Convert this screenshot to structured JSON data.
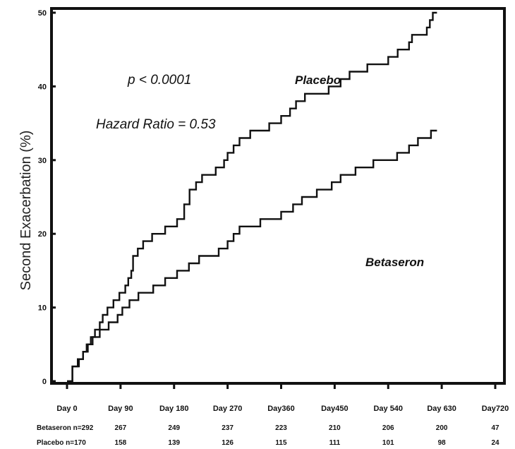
{
  "chart_data": {
    "type": "line",
    "title": "",
    "xlabel": "",
    "ylabel": "Second Exacerbation (%)",
    "xlim": [
      0,
      720
    ],
    "ylim": [
      0,
      50
    ],
    "x_ticks": [
      {
        "value": 0,
        "label": "Day 0"
      },
      {
        "value": 90,
        "label": "Day 90"
      },
      {
        "value": 180,
        "label": "Day 180"
      },
      {
        "value": 270,
        "label": "Day 270"
      },
      {
        "value": 360,
        "label": "Day360"
      },
      {
        "value": 450,
        "label": "Day450"
      },
      {
        "value": 540,
        "label": "Day 540"
      },
      {
        "value": 630,
        "label": "Day 630"
      },
      {
        "value": 720,
        "label": "Day720"
      }
    ],
    "y_ticks": [
      {
        "value": 0,
        "label": "0"
      },
      {
        "value": 10,
        "label": "10"
      },
      {
        "value": 20,
        "label": "20"
      },
      {
        "value": 30,
        "label": "30"
      },
      {
        "value": 40,
        "label": "40"
      },
      {
        "value": 50,
        "label": "50"
      }
    ],
    "grid": false,
    "annotations": [
      "p < 0.0001",
      "Hazard Ratio = 0.53"
    ],
    "series": [
      {
        "name": "Placebo",
        "points": [
          [
            0,
            0
          ],
          [
            9,
            0
          ],
          [
            9,
            2
          ],
          [
            20,
            2
          ],
          [
            20,
            3
          ],
          [
            27,
            3
          ],
          [
            27,
            4
          ],
          [
            33,
            4
          ],
          [
            33,
            5
          ],
          [
            40,
            5
          ],
          [
            40,
            6
          ],
          [
            47,
            6
          ],
          [
            47,
            7
          ],
          [
            55,
            7
          ],
          [
            55,
            8
          ],
          [
            60,
            8
          ],
          [
            60,
            9
          ],
          [
            68,
            9
          ],
          [
            68,
            10
          ],
          [
            78,
            10
          ],
          [
            78,
            11
          ],
          [
            88,
            11
          ],
          [
            88,
            12
          ],
          [
            98,
            12
          ],
          [
            98,
            13
          ],
          [
            103,
            13
          ],
          [
            103,
            14
          ],
          [
            108,
            14
          ],
          [
            108,
            15
          ],
          [
            111,
            15
          ],
          [
            111,
            17
          ],
          [
            119,
            17
          ],
          [
            119,
            18
          ],
          [
            128,
            18
          ],
          [
            128,
            19
          ],
          [
            143,
            19
          ],
          [
            143,
            20
          ],
          [
            165,
            20
          ],
          [
            165,
            21
          ],
          [
            185,
            21
          ],
          [
            185,
            22
          ],
          [
            197,
            22
          ],
          [
            197,
            24
          ],
          [
            206,
            24
          ],
          [
            206,
            26
          ],
          [
            217,
            26
          ],
          [
            217,
            27
          ],
          [
            227,
            27
          ],
          [
            227,
            28
          ],
          [
            250,
            28
          ],
          [
            250,
            29
          ],
          [
            264,
            29
          ],
          [
            264,
            30
          ],
          [
            270,
            30
          ],
          [
            270,
            31
          ],
          [
            280,
            31
          ],
          [
            280,
            32
          ],
          [
            290,
            32
          ],
          [
            290,
            33
          ],
          [
            308,
            33
          ],
          [
            308,
            34
          ],
          [
            340,
            34
          ],
          [
            340,
            35
          ],
          [
            360,
            35
          ],
          [
            360,
            36
          ],
          [
            375,
            36
          ],
          [
            375,
            37
          ],
          [
            385,
            37
          ],
          [
            385,
            38
          ],
          [
            400,
            38
          ],
          [
            400,
            39
          ],
          [
            440,
            39
          ],
          [
            440,
            40
          ],
          [
            460,
            40
          ],
          [
            460,
            41
          ],
          [
            475,
            41
          ],
          [
            475,
            42
          ],
          [
            505,
            42
          ],
          [
            505,
            43
          ],
          [
            540,
            43
          ],
          [
            540,
            44
          ],
          [
            556,
            44
          ],
          [
            556,
            45
          ],
          [
            575,
            45
          ],
          [
            575,
            46
          ],
          [
            580,
            46
          ],
          [
            580,
            47
          ],
          [
            605,
            47
          ],
          [
            605,
            48
          ],
          [
            610,
            48
          ],
          [
            610,
            49
          ],
          [
            615,
            49
          ],
          [
            615,
            50
          ],
          [
            622,
            50
          ]
        ]
      },
      {
        "name": "Betaseron",
        "points": [
          [
            0,
            0
          ],
          [
            9,
            0
          ],
          [
            9,
            2
          ],
          [
            18,
            2
          ],
          [
            18,
            3
          ],
          [
            27,
            3
          ],
          [
            27,
            4
          ],
          [
            35,
            4
          ],
          [
            35,
            5
          ],
          [
            43,
            5
          ],
          [
            43,
            6
          ],
          [
            55,
            6
          ],
          [
            55,
            7
          ],
          [
            70,
            7
          ],
          [
            70,
            8
          ],
          [
            85,
            8
          ],
          [
            85,
            9
          ],
          [
            93,
            9
          ],
          [
            93,
            10
          ],
          [
            105,
            10
          ],
          [
            105,
            11
          ],
          [
            120,
            11
          ],
          [
            120,
            12
          ],
          [
            145,
            12
          ],
          [
            145,
            13
          ],
          [
            165,
            13
          ],
          [
            165,
            14
          ],
          [
            185,
            14
          ],
          [
            185,
            15
          ],
          [
            205,
            15
          ],
          [
            205,
            16
          ],
          [
            222,
            16
          ],
          [
            222,
            17
          ],
          [
            255,
            17
          ],
          [
            255,
            18
          ],
          [
            270,
            18
          ],
          [
            270,
            19
          ],
          [
            280,
            19
          ],
          [
            280,
            20
          ],
          [
            290,
            20
          ],
          [
            290,
            21
          ],
          [
            325,
            21
          ],
          [
            325,
            22
          ],
          [
            360,
            22
          ],
          [
            360,
            23
          ],
          [
            380,
            23
          ],
          [
            380,
            24
          ],
          [
            395,
            24
          ],
          [
            395,
            25
          ],
          [
            420,
            25
          ],
          [
            420,
            26
          ],
          [
            445,
            26
          ],
          [
            445,
            27
          ],
          [
            460,
            27
          ],
          [
            460,
            28
          ],
          [
            485,
            28
          ],
          [
            485,
            29
          ],
          [
            515,
            29
          ],
          [
            515,
            30
          ],
          [
            555,
            30
          ],
          [
            555,
            31
          ],
          [
            575,
            31
          ],
          [
            575,
            32
          ],
          [
            590,
            32
          ],
          [
            590,
            33
          ],
          [
            612,
            33
          ],
          [
            612,
            34
          ],
          [
            622,
            34
          ]
        ]
      }
    ],
    "risk_table": [
      {
        "label": "Betaseron n=292",
        "values": [
          "267",
          "249",
          "237",
          "223",
          "210",
          "206",
          "200",
          "47"
        ]
      },
      {
        "label": "Placebo n=170",
        "values": [
          "158",
          "139",
          "126",
          "115",
          "111",
          "101",
          "98",
          "24"
        ]
      }
    ]
  }
}
